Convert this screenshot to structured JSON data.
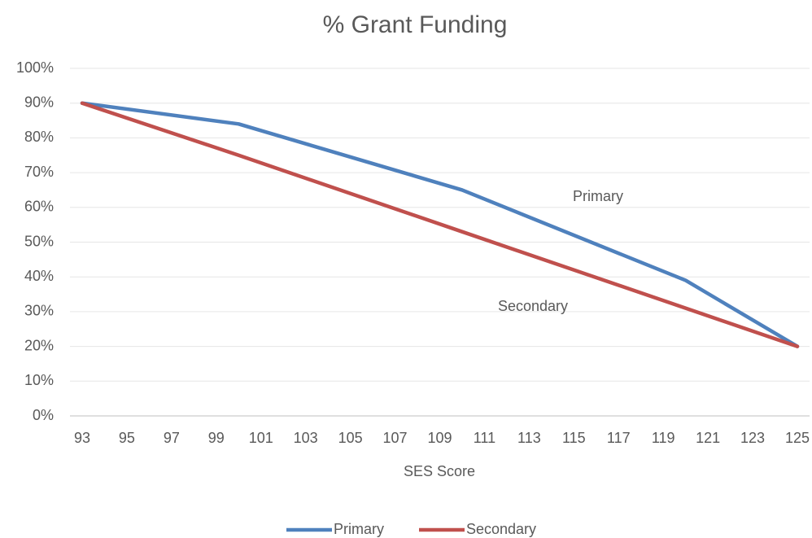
{
  "chart_data": {
    "type": "line",
    "title": "% Grant Funding",
    "x_label": "SES Score",
    "x": [
      93,
      100,
      110,
      120,
      125
    ],
    "series": [
      {
        "name": "Primary",
        "color": "#4f81bd",
        "values": [
          90,
          84,
          65,
          39,
          20
        ]
      },
      {
        "name": "Secondary",
        "color": "#c0504d",
        "values": [
          90,
          75,
          53,
          31,
          20
        ]
      }
    ],
    "xlim": [
      93,
      125
    ],
    "xticks": [
      93,
      95,
      97,
      99,
      101,
      103,
      105,
      107,
      109,
      111,
      113,
      115,
      117,
      119,
      121,
      123,
      125
    ],
    "ylim": [
      0,
      100
    ],
    "yticks": [
      {
        "value": 0,
        "label": "0%"
      },
      {
        "value": 10,
        "label": "10%"
      },
      {
        "value": 20,
        "label": "20%"
      },
      {
        "value": 30,
        "label": "30%"
      },
      {
        "value": 40,
        "label": "40%"
      },
      {
        "value": 50,
        "label": "50%"
      },
      {
        "value": 60,
        "label": "60%"
      },
      {
        "value": 70,
        "label": "70%"
      },
      {
        "value": 80,
        "label": "80%"
      },
      {
        "value": 90,
        "label": "90%"
      },
      {
        "value": 100,
        "label": "100%"
      }
    ],
    "annotations": [
      "Primary",
      "Secondary"
    ],
    "grid": true,
    "legend": "bottom"
  }
}
